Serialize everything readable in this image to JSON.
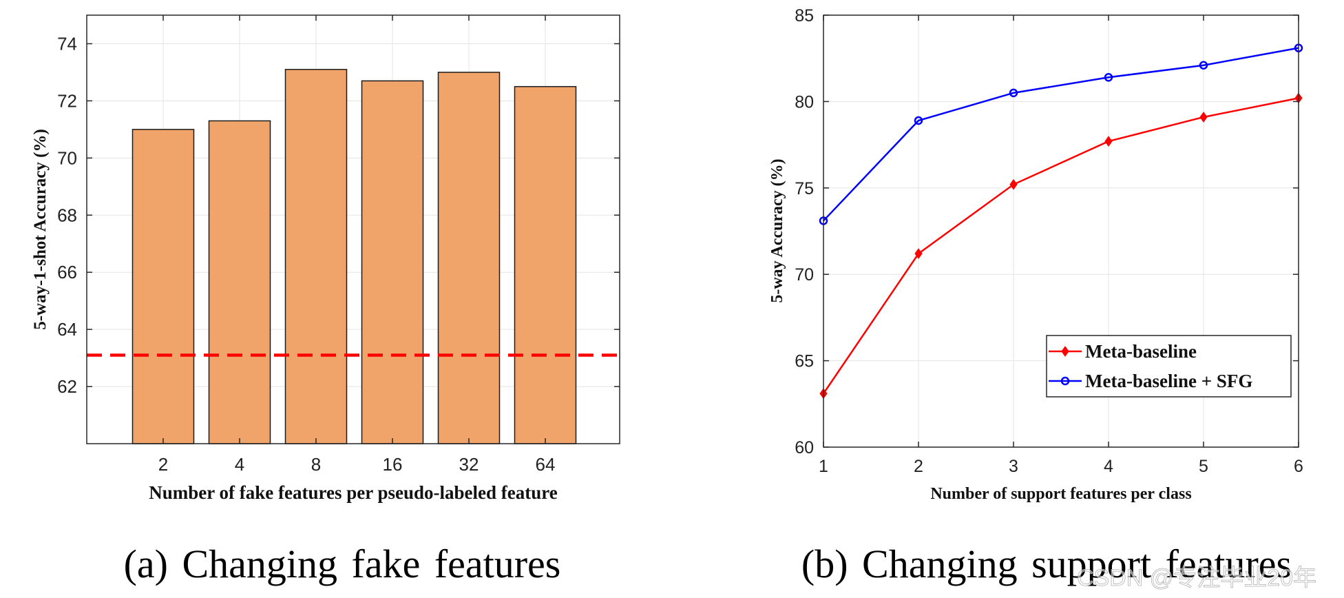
{
  "chart_data": [
    {
      "type": "bar",
      "categories": [
        "2",
        "4",
        "8",
        "16",
        "32",
        "64"
      ],
      "values": [
        71.0,
        71.3,
        73.1,
        72.7,
        73.0,
        72.5
      ],
      "baseline": 63.1,
      "baseline_style": "red dashed",
      "bar_color": "#F0A46A",
      "baseline_color": "#FF0000",
      "xlabel": "Number of fake features per pseudo-labeled feature",
      "ylabel": "5-way-1-shot Accuracy (%)",
      "ylim": [
        60,
        75
      ],
      "yticks": [
        62,
        64,
        66,
        68,
        70,
        72,
        74
      ],
      "grid": true,
      "caption": "(a) Changing fake features"
    },
    {
      "type": "line",
      "x": [
        1,
        2,
        3,
        4,
        5,
        6
      ],
      "series": [
        {
          "name": "Meta-baseline",
          "color": "#FF0000",
          "marker": "diamond",
          "values": [
            63.1,
            71.2,
            75.2,
            77.7,
            79.1,
            80.2
          ]
        },
        {
          "name": "Meta-baseline + SFG",
          "color": "#0000FF",
          "marker": "circle",
          "values": [
            73.1,
            78.9,
            80.5,
            81.4,
            82.1,
            83.1
          ]
        }
      ],
      "xlabel": "Number of support features per class",
      "ylabel": "5-way Accuracy (%)",
      "xlim": [
        1,
        6
      ],
      "ylim": [
        60,
        85
      ],
      "yticks": [
        60,
        65,
        70,
        75,
        80,
        85
      ],
      "xticks": [
        1,
        2,
        3,
        4,
        5,
        6
      ],
      "grid": true,
      "legend_position": "bottom-right",
      "caption": "(b) Changing support features"
    }
  ],
  "watermark": "CSDN @专注毕业20年"
}
